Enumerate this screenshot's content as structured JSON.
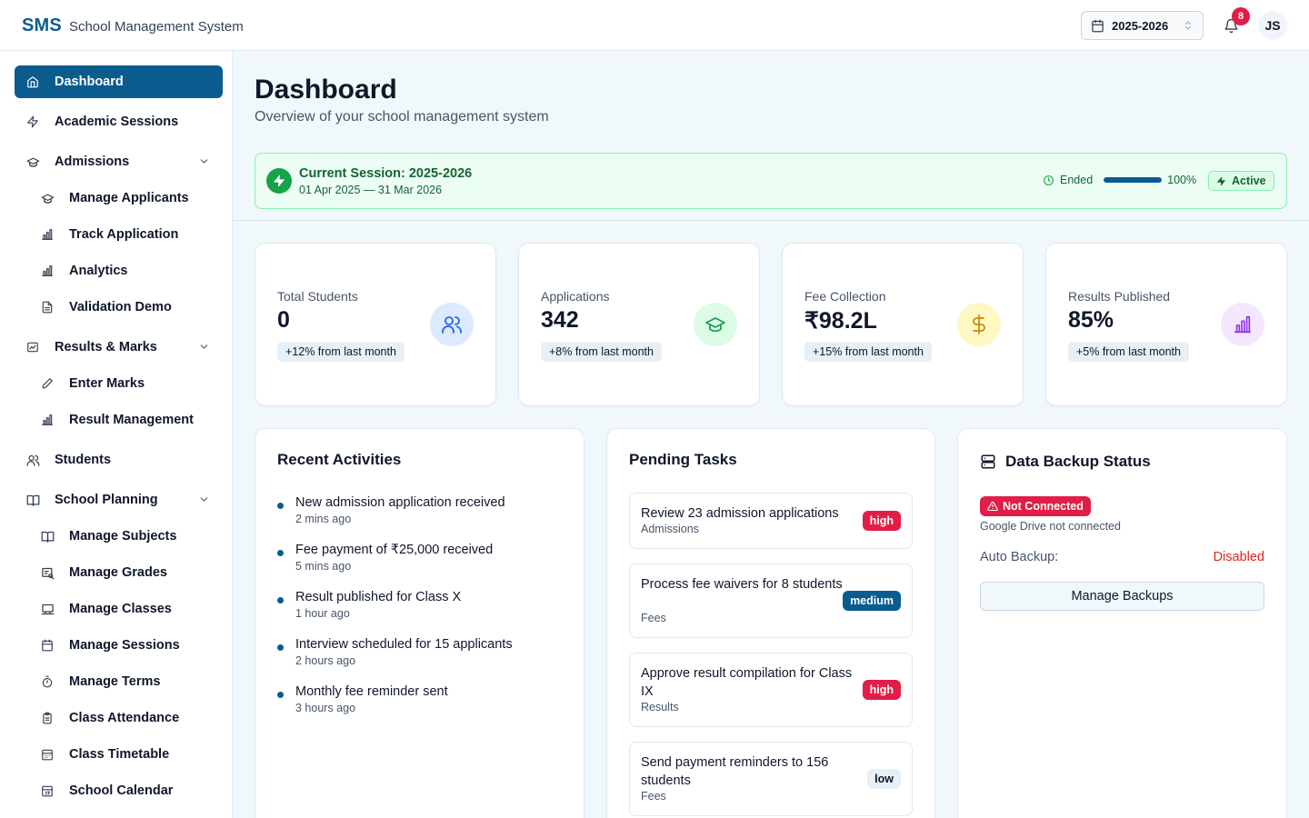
{
  "header": {
    "brand_short": "SMS",
    "brand_full": "School Management System",
    "session": "2025-2026",
    "notification_count": "8",
    "user_initials": "JS"
  },
  "sidebar": {
    "items": [
      {
        "label": "Dashboard",
        "icon": "home-icon"
      },
      {
        "label": "Academic Sessions",
        "icon": "bolt-icon"
      },
      {
        "label": "Admissions",
        "icon": "graduation-cap-icon"
      },
      {
        "label": "Manage Applicants",
        "icon": "graduation-cap-icon"
      },
      {
        "label": "Track Application",
        "icon": "bar-chart-icon"
      },
      {
        "label": "Analytics",
        "icon": "bar-chart-icon"
      },
      {
        "label": "Validation Demo",
        "icon": "file-icon"
      },
      {
        "label": "Results & Marks",
        "icon": "chart-box-icon"
      },
      {
        "label": "Enter Marks",
        "icon": "pencil-icon"
      },
      {
        "label": "Result Management",
        "icon": "bar-chart-icon"
      },
      {
        "label": "Students",
        "icon": "users-icon"
      },
      {
        "label": "School Planning",
        "icon": "book-icon"
      },
      {
        "label": "Manage Subjects",
        "icon": "book-icon"
      },
      {
        "label": "Manage Grades",
        "icon": "grades-icon"
      },
      {
        "label": "Manage Classes",
        "icon": "classroom-icon"
      },
      {
        "label": "Manage Sessions",
        "icon": "calendar-icon"
      },
      {
        "label": "Manage Terms",
        "icon": "timer-icon"
      },
      {
        "label": "Class Attendance",
        "icon": "clipboard-icon"
      },
      {
        "label": "Class Timetable",
        "icon": "calendar-grid-icon"
      },
      {
        "label": "School Calendar",
        "icon": "calendar-date-icon"
      }
    ]
  },
  "page": {
    "title": "Dashboard",
    "subtitle": "Overview of your school management system"
  },
  "banner": {
    "title": "Current Session: 2025-2026",
    "dates": "01 Apr 2025 — 31 Mar 2026",
    "status": "Ended",
    "progress_label": "100%",
    "progress": 1.0,
    "badge": "Active"
  },
  "stats": [
    {
      "label": "Total Students",
      "value": "0",
      "change": "+12% from last month",
      "icon": "users-icon",
      "color": "#2563eb",
      "bg": "#dbeafe"
    },
    {
      "label": "Applications",
      "value": "342",
      "change": "+8% from last month",
      "icon": "graduation-cap-icon",
      "color": "#16a34a",
      "bg": "#dcfce7"
    },
    {
      "label": "Fee Collection",
      "value": "₹98.2L",
      "change": "+15% from last month",
      "icon": "dollar-icon",
      "color": "#ca8a04",
      "bg": "#fef9c3"
    },
    {
      "label": "Results Published",
      "value": "85%",
      "change": "+5% from last month",
      "icon": "bar-chart-icon",
      "color": "#9333ea",
      "bg": "#f3e8ff"
    }
  ],
  "activities": {
    "title": "Recent Activities",
    "items": [
      {
        "text": "New admission application received",
        "time": "2 mins ago"
      },
      {
        "text": "Fee payment of ₹25,000 received",
        "time": "5 mins ago"
      },
      {
        "text": "Result published for Class X",
        "time": "1 hour ago"
      },
      {
        "text": "Interview scheduled for 15 applicants",
        "time": "2 hours ago"
      },
      {
        "text": "Monthly fee reminder sent",
        "time": "3 hours ago"
      }
    ]
  },
  "tasks": {
    "title": "Pending Tasks",
    "items": [
      {
        "title": "Review 23 admission applications",
        "category": "Admissions",
        "priority": "high"
      },
      {
        "title": "Process fee waivers for 8 students",
        "category": "Fees",
        "priority": "medium"
      },
      {
        "title": "Approve result compilation for Class IX",
        "category": "Results",
        "priority": "high"
      },
      {
        "title": "Send payment reminders to 156 students",
        "category": "Fees",
        "priority": "low"
      }
    ]
  },
  "backup": {
    "title": "Data Backup Status",
    "status_badge": "Not Connected",
    "status_text": "Google Drive not connected",
    "auto_backup_label": "Auto Backup:",
    "auto_backup_value": "Disabled",
    "button": "Manage Backups"
  },
  "colors": {
    "primary": "#0b5c8e",
    "high": "#e11d48",
    "medium": "#0b5c8e",
    "low": "#e2e8f0"
  }
}
